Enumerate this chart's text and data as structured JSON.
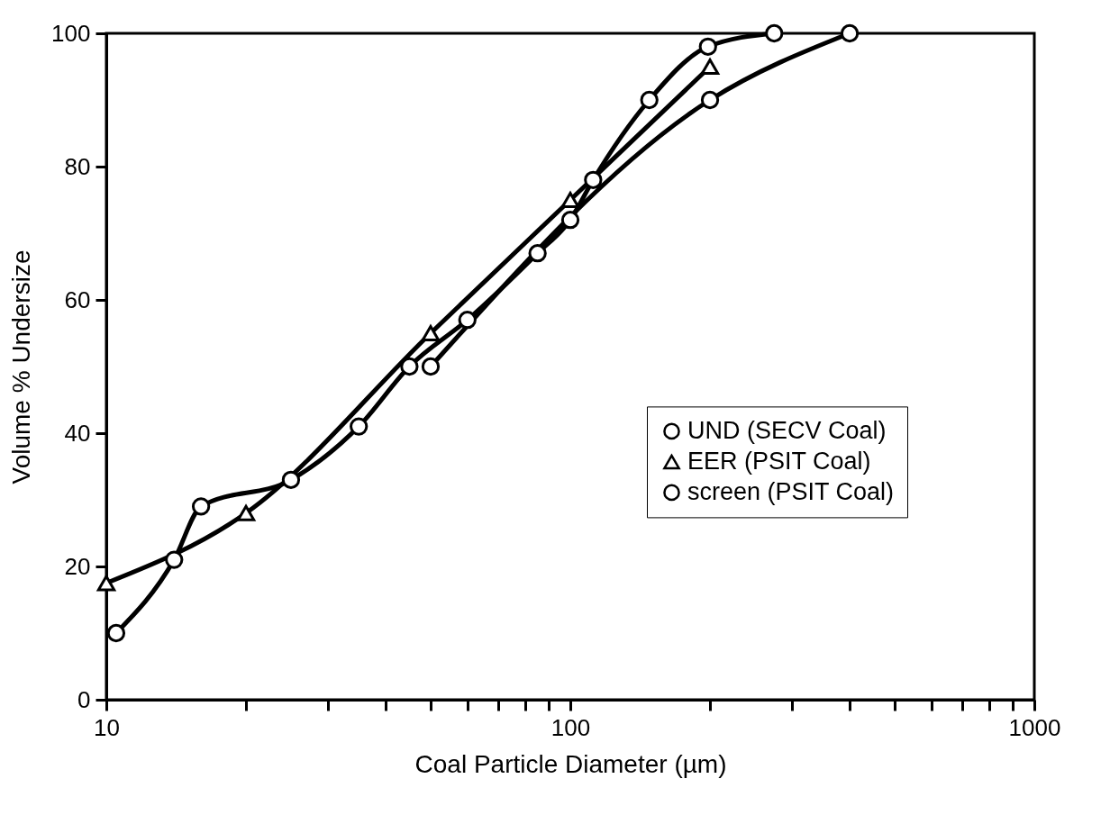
{
  "chart_data": {
    "type": "line",
    "xlabel": "Coal Particle Diameter (µm)",
    "ylabel": "Volume % Undersize",
    "log": "x",
    "xlim": [
      10,
      1000
    ],
    "ylim": [
      0,
      100
    ],
    "xticks": [
      10,
      {
        "value": 20,
        "label": null
      },
      {
        "value": 30,
        "label": null
      },
      {
        "value": 40,
        "label": null
      },
      {
        "value": 50,
        "label": null
      },
      {
        "value": 60,
        "label": null
      },
      {
        "value": 70,
        "label": null
      },
      {
        "value": 80,
        "label": null
      },
      {
        "value": 90,
        "label": null
      },
      100,
      {
        "value": 200,
        "label": null
      },
      {
        "value": 300,
        "label": null
      },
      {
        "value": 400,
        "label": null
      },
      {
        "value": 500,
        "label": null
      },
      {
        "value": 600,
        "label": null
      },
      {
        "value": 700,
        "label": null
      },
      {
        "value": 800,
        "label": null
      },
      {
        "value": 900,
        "label": null
      },
      1000
    ],
    "yticks": [
      0,
      20,
      40,
      60,
      80,
      100
    ],
    "grid": false,
    "legend": "right",
    "line_style": "solid",
    "series": [
      {
        "name": "UND (SECV Coal)",
        "color": "#000000",
        "marker": "circle",
        "x": [
          10.5,
          14,
          16,
          25,
          35,
          45,
          60,
          85,
          100,
          112,
          148,
          198,
          275
        ],
        "values": [
          10,
          21,
          29,
          33,
          41,
          50,
          57,
          67,
          72,
          78,
          90,
          98,
          100
        ]
      },
      {
        "name": "EER (PSIT Coal)",
        "color": "#000000",
        "marker": "triangle",
        "x": [
          10,
          20,
          50,
          100,
          200
        ],
        "values": [
          17.5,
          28,
          55,
          75,
          95
        ]
      },
      {
        "name": "screen (PSIT Coal)",
        "color": "#000000",
        "marker": "circle",
        "x": [
          50,
          200,
          400
        ],
        "values": [
          50,
          90,
          100
        ]
      }
    ]
  }
}
